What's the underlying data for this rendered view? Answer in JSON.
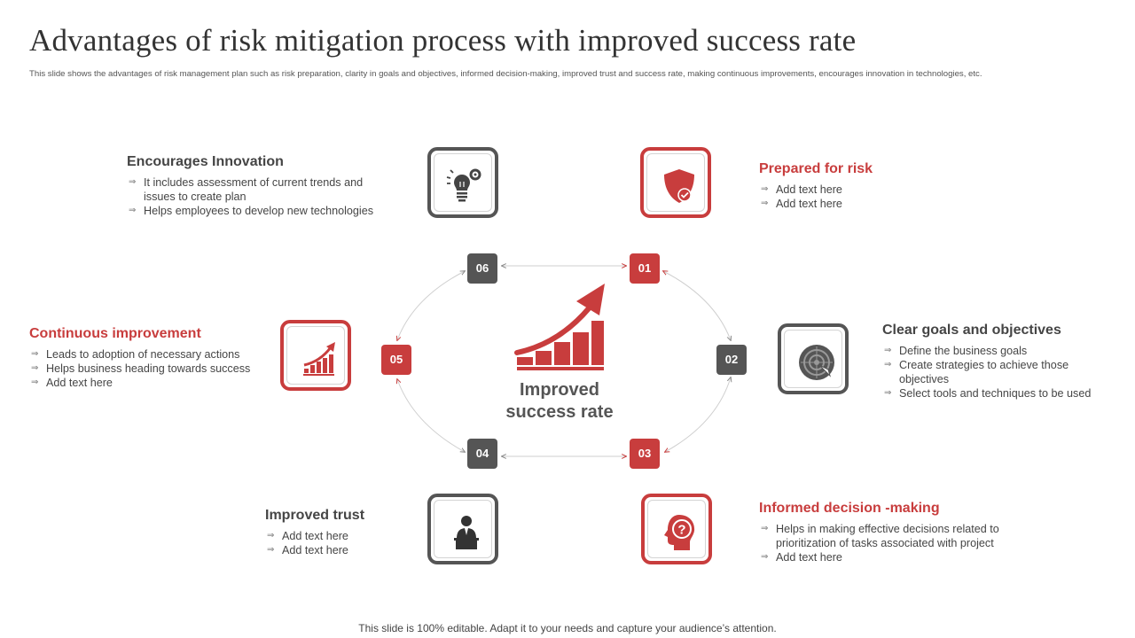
{
  "header": {
    "title": "Advantages of risk mitigation process with improved success rate",
    "subtitle": "This slide shows the advantages of risk management plan  such as risk preparation, clarity in  goals and objectives, informed decision-making, improved trust and success rate, making continuous improvements,  encourages innovation in technologies, etc."
  },
  "center": {
    "line1": "Improved",
    "line2": "success rate"
  },
  "badges": [
    "01",
    "02",
    "03",
    "04",
    "05",
    "06"
  ],
  "items": {
    "prepared": {
      "title": "Prepared for risk",
      "points": [
        "Add text here",
        "Add text here"
      ]
    },
    "clear": {
      "title": "Clear goals and objectives",
      "points": [
        "Define the business goals",
        "Create strategies to achieve  those objectives",
        "Select tools and techniques to be used"
      ]
    },
    "informed": {
      "title": "Informed decision -making",
      "points": [
        "Helps in making effective  decisions related to prioritization of tasks associated with project",
        "Add text here"
      ]
    },
    "trust": {
      "title": "Improved trust",
      "points": [
        "Add text here",
        "Add text here"
      ]
    },
    "continuous": {
      "title": "Continuous improvement",
      "points": [
        "Leads to adoption  of necessary actions",
        "Helps business heading towards success",
        "Add text here"
      ]
    },
    "innovation": {
      "title": "Encourages Innovation",
      "points": [
        "It includes assessment of current trends and issues to create plan",
        "Helps employees to develop  new technologies"
      ]
    }
  },
  "icons": {
    "prepared": "shield-check-icon",
    "clear": "target-icon",
    "informed": "head-question-icon",
    "trust": "presenter-podium-icon",
    "continuous": "growth-chart-icon",
    "innovation": "lightbulb-gear-icon"
  },
  "colors": {
    "accent": "#c83d3d",
    "dark": "#555555"
  },
  "footer": "This slide is 100% editable. Adapt it to your needs and capture your audience’s attention."
}
